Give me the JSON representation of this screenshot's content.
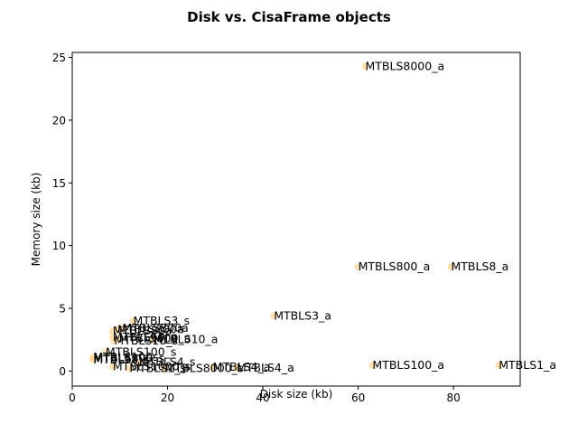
{
  "chart_data": {
    "type": "scatter",
    "title": "Disk vs. CisaFrame objects",
    "xlabel": "Disk size (kb)",
    "ylabel": "Memory size (kb)",
    "xlim": [
      0,
      94
    ],
    "ylim": [
      -1.2,
      25.4
    ],
    "xticks": [
      0,
      20,
      40,
      60,
      80
    ],
    "yticks": [
      0,
      5,
      10,
      15,
      20,
      25
    ],
    "grid": false,
    "marker_color": "#ffd79a",
    "points": [
      {
        "x": 61.5,
        "y": 24.3,
        "label": "MTBLS8000_a"
      },
      {
        "x": 60.0,
        "y": 8.3,
        "label": "MTBLS800_a"
      },
      {
        "x": 79.5,
        "y": 8.3,
        "label": "MTBLS8_a"
      },
      {
        "x": 42.3,
        "y": 4.4,
        "label": "MTBLS3_a"
      },
      {
        "x": 12.8,
        "y": 4.0,
        "label": "MTBLS3_s"
      },
      {
        "x": 8.5,
        "y": 3.2,
        "label": "MTBLS80a"
      },
      {
        "x": 9.5,
        "y": 3.3,
        "label": "MTBLS800a"
      },
      {
        "x": 10.5,
        "y": 3.4,
        "label": "MTBLS800a"
      },
      {
        "x": 8.5,
        "y": 2.7,
        "label": "MTBLS60_a"
      },
      {
        "x": 9.8,
        "y": 2.6,
        "label": "MTBLS600_a"
      },
      {
        "x": 8.8,
        "y": 2.4,
        "label": "MTBLS10_s"
      },
      {
        "x": 17.0,
        "y": 2.5,
        "label": "MTBLS10_a"
      },
      {
        "x": 7.0,
        "y": 1.5,
        "label": "MTBLS100_s"
      },
      {
        "x": 4.4,
        "y": 1.1,
        "label": "MTBLS100s"
      },
      {
        "x": 4.5,
        "y": 1.0,
        "label": "MTBLS800_s"
      },
      {
        "x": 4.4,
        "y": 0.9,
        "label": "MTBLS8_s"
      },
      {
        "x": 14.0,
        "y": 0.7,
        "label": "MTBLS4_s"
      },
      {
        "x": 8.5,
        "y": 0.35,
        "label": "MTBLS1000_s"
      },
      {
        "x": 12.0,
        "y": 0.2,
        "label": "MTBLS1_s"
      },
      {
        "x": 19.5,
        "y": 0.2,
        "label": "MTBLS8000_s"
      },
      {
        "x": 29.5,
        "y": 0.3,
        "label": "MTBLS4_a"
      },
      {
        "x": 34.5,
        "y": 0.25,
        "label": "MTBLS4_a"
      },
      {
        "x": 63.0,
        "y": 0.45,
        "label": "MTBLS100_a"
      },
      {
        "x": 89.5,
        "y": 0.45,
        "label": "MTBLS1_a"
      }
    ]
  }
}
